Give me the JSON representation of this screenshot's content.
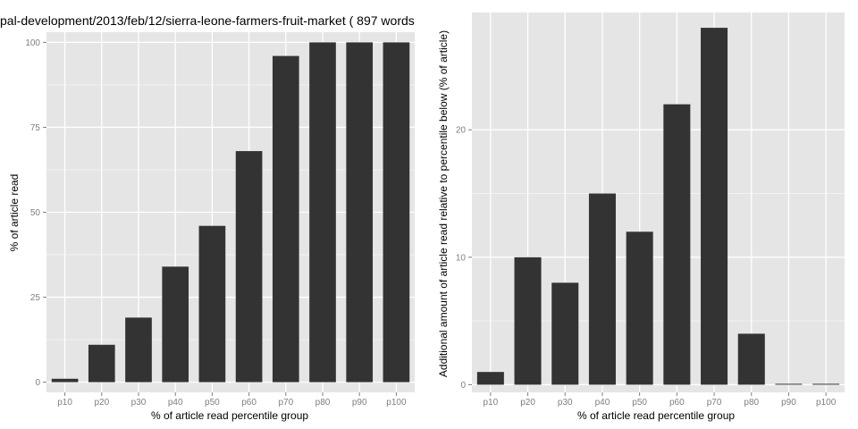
{
  "chart_data": [
    {
      "type": "bar",
      "title": "pal-development/2013/feb/12/sierra-leone-farmers-fruit-market ( 897 words",
      "xlabel": "% of article read percentile group",
      "ylabel": "% of article read",
      "categories": [
        "p10",
        "p20",
        "p30",
        "p40",
        "p50",
        "p60",
        "p70",
        "p80",
        "p90",
        "p100"
      ],
      "values": [
        1,
        11,
        19,
        34,
        46,
        68,
        96,
        100,
        100,
        100
      ],
      "ylim": [
        -3,
        103
      ],
      "yticks": [
        0,
        25,
        50,
        75,
        100
      ],
      "ytick_labels": [
        "0",
        "25",
        "50",
        "75",
        "100"
      ],
      "grid": true
    },
    {
      "type": "bar",
      "title": "",
      "xlabel": "% of article read percentile group",
      "ylabel": "Additional amount of article read relative to percentile below (% of article)",
      "categories": [
        "p10",
        "p20",
        "p30",
        "p40",
        "p50",
        "p60",
        "p70",
        "p80",
        "p90",
        "p100"
      ],
      "values": [
        1,
        10,
        8,
        15,
        12,
        22,
        28,
        4,
        0,
        0
      ],
      "ylim": [
        -0.6,
        29.2
      ],
      "yticks": [
        0,
        10,
        20
      ],
      "ytick_labels": [
        "0",
        "10",
        "20"
      ],
      "grid": true
    }
  ],
  "colors": {
    "panel_bg": "#e5e5e5",
    "grid_major": "#ffffff",
    "grid_minor": "#f2f2f2",
    "bar": "#333333",
    "tick_text": "#7f7f7f"
  }
}
